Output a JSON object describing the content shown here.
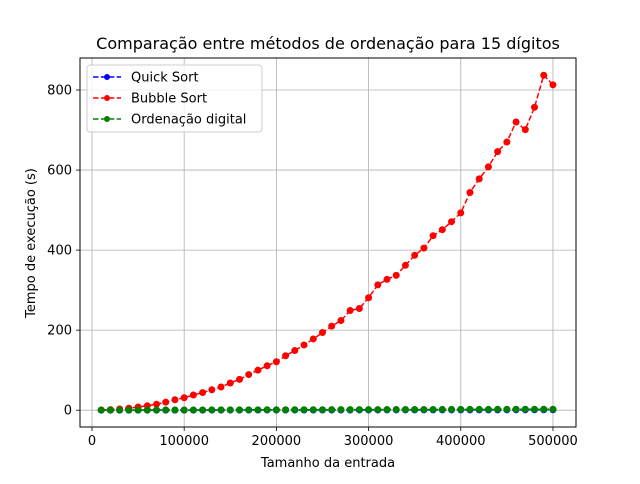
{
  "chart_data": {
    "type": "line",
    "title": "Comparação entre métodos de ordenação para 15 dígitos",
    "xlabel": "Tamanho da entrada",
    "ylabel": "Tempo de execução (s)",
    "xlim": [
      -13000,
      525000
    ],
    "ylim": [
      -42,
      880
    ],
    "xticks": [
      0,
      100000,
      200000,
      300000,
      400000,
      500000
    ],
    "xtick_labels": [
      "0",
      "100000",
      "200000",
      "300000",
      "400000",
      "500000"
    ],
    "yticks": [
      0,
      200,
      400,
      600,
      800
    ],
    "ytick_labels": [
      "0",
      "200",
      "400",
      "600",
      "800"
    ],
    "grid": true,
    "legend_position": "upper-left",
    "x": [
      10000,
      20000,
      30000,
      40000,
      50000,
      60000,
      70000,
      80000,
      90000,
      100000,
      110000,
      120000,
      130000,
      140000,
      150000,
      160000,
      170000,
      180000,
      190000,
      200000,
      210000,
      220000,
      230000,
      240000,
      250000,
      260000,
      270000,
      280000,
      290000,
      300000,
      310000,
      320000,
      330000,
      340000,
      350000,
      360000,
      370000,
      380000,
      390000,
      400000,
      410000,
      420000,
      430000,
      440000,
      450000,
      460000,
      470000,
      480000,
      490000,
      500000
    ],
    "series": [
      {
        "name": "Quick Sort",
        "color": "#0000ff",
        "values": [
          0.02,
          0.04,
          0.06,
          0.08,
          0.1,
          0.12,
          0.14,
          0.16,
          0.18,
          0.2,
          0.22,
          0.24,
          0.26,
          0.28,
          0.3,
          0.32,
          0.34,
          0.36,
          0.38,
          0.4,
          0.42,
          0.44,
          0.46,
          0.48,
          0.5,
          0.52,
          0.54,
          0.56,
          0.58,
          0.6,
          0.62,
          0.64,
          0.66,
          0.68,
          0.7,
          0.72,
          0.74,
          0.76,
          0.78,
          0.8,
          0.82,
          0.84,
          0.86,
          0.88,
          0.9,
          0.92,
          0.94,
          0.96,
          0.98,
          1.0
        ]
      },
      {
        "name": "Bubble Sort",
        "color": "#ff0000",
        "values": [
          0.4,
          1.5,
          3,
          5,
          8,
          11,
          15,
          20,
          26,
          31,
          38,
          44,
          51,
          58,
          68,
          77,
          89,
          100,
          111,
          121,
          136,
          149,
          163,
          178,
          194,
          210,
          224,
          249,
          254,
          281,
          313,
          327,
          337,
          362,
          387,
          405,
          436,
          451,
          471,
          493,
          544,
          578,
          608,
          646,
          670,
          720,
          701,
          757,
          837,
          813
        ]
      },
      {
        "name": "Ordenação digital",
        "color": "#008000",
        "values": [
          0.05,
          0.1,
          0.15,
          0.2,
          0.25,
          0.3,
          0.35,
          0.4,
          0.45,
          0.5,
          0.55,
          0.6,
          0.65,
          0.7,
          0.75,
          0.8,
          0.85,
          0.9,
          0.95,
          1.0,
          1.05,
          1.1,
          1.15,
          1.2,
          1.25,
          1.3,
          1.35,
          1.4,
          1.45,
          1.5,
          1.55,
          1.6,
          1.65,
          1.7,
          1.75,
          1.8,
          1.85,
          1.9,
          1.95,
          2.0,
          2.05,
          2.1,
          2.15,
          2.2,
          2.25,
          2.3,
          2.35,
          2.4,
          2.45,
          2.5
        ]
      }
    ]
  }
}
